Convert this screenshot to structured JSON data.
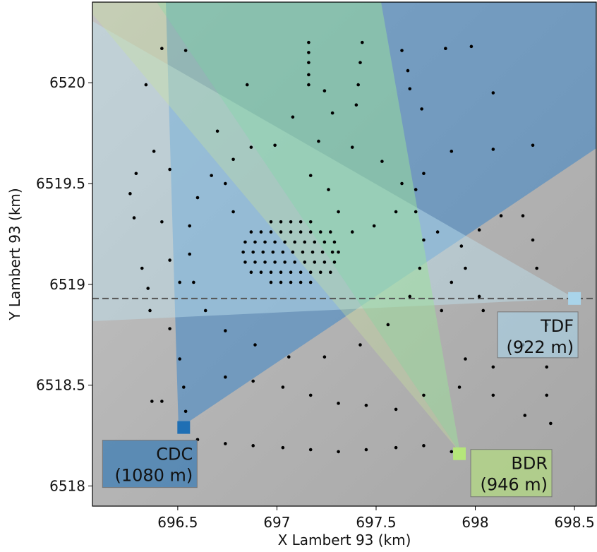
{
  "chart_data": {
    "type": "scatter",
    "xlabel": "X Lambert 93 (km)",
    "ylabel": "Y Lambert 93 (km)",
    "xlim": [
      696.07,
      698.61
    ],
    "ylim": [
      6517.9,
      6520.4
    ],
    "xticks": [
      696.5,
      697,
      697.5,
      698,
      698.5
    ],
    "yticks": [
      6518,
      6518.5,
      6519,
      6519.5,
      6520
    ],
    "color": "#000000",
    "x": [
      696.42,
      696.54,
      696.34,
      697.16,
      697.16,
      697.16,
      697.16,
      697.16,
      697.43,
      697.42,
      697.41,
      697.4,
      697.63,
      697.66,
      697.67,
      697.73,
      697.98,
      697.85,
      698.09,
      698.29,
      698.09,
      697.88,
      697.24,
      697.28,
      697.08,
      696.85,
      696.7,
      696.29,
      696.38,
      696.46,
      696.78,
      696.67,
      696.6,
      696.56,
      696.56,
      696.58,
      696.64,
      696.74,
      696.89,
      697.06,
      697.24,
      697.42,
      697.56,
      697.67,
      697.72,
      697.74,
      697.7,
      697.63,
      697.53,
      697.38,
      697.21,
      696.99,
      696.87,
      696.32,
      696.35,
      696.36,
      696.46,
      696.51,
      696.53,
      696.54,
      696.42,
      696.37,
      696.6,
      696.74,
      696.88,
      697.03,
      697.17,
      697.31,
      697.45,
      697.6,
      697.74,
      697.88,
      697.6,
      697.45,
      697.31,
      697.17,
      697.03,
      696.88,
      696.74,
      697.74,
      697.92,
      698.09,
      698.24,
      698.36,
      698.36,
      698.36,
      698.38,
      698.25,
      698.09,
      697.95,
      697.83,
      697.88,
      698.02,
      698.04,
      697.93,
      697.95,
      697.81,
      698.02,
      698.13,
      698.24,
      698.29,
      698.31,
      697.74,
      697.7,
      697.6,
      697.49,
      697.38,
      697.31,
      697.26,
      697.17,
      696.28,
      696.26,
      696.42,
      696.46,
      696.51,
      696.78,
      696.74,
      696.97,
      697.02,
      697.07,
      697.12,
      697.17,
      696.87,
      696.92,
      696.97,
      697.02,
      697.07,
      697.12,
      697.17,
      697.22,
      697.27,
      696.84,
      696.89,
      696.94,
      696.99,
      697.04,
      697.09,
      697.14,
      697.19,
      697.24,
      697.29,
      696.83,
      696.88,
      696.93,
      696.98,
      697.03,
      697.08,
      697.13,
      697.18,
      697.23,
      697.28,
      697.31,
      696.84,
      696.89,
      696.94,
      696.99,
      697.04,
      697.09,
      697.14,
      697.19,
      697.24,
      697.29,
      696.87,
      696.92,
      696.97,
      697.02,
      697.07,
      697.12,
      697.17,
      697.22,
      697.27,
      696.97,
      697.02,
      697.07,
      697.12,
      697.17
    ],
    "values": [
      6520.17,
      6520.16,
      6519.99,
      6520.2,
      6520.15,
      6520.1,
      6520.04,
      6519.99,
      6520.2,
      6520.1,
      6519.99,
      6519.89,
      6520.16,
      6520.06,
      6519.97,
      6519.87,
      6520.18,
      6520.17,
      6519.95,
      6519.69,
      6519.67,
      6519.66,
      6519.96,
      6519.85,
      6519.83,
      6519.99,
      6519.76,
      6519.55,
      6519.66,
      6519.57,
      6519.62,
      6519.54,
      6519.43,
      6519.29,
      6519.15,
      6519.01,
      6518.87,
      6518.77,
      6518.7,
      6518.64,
      6518.64,
      6518.7,
      6518.8,
      6518.94,
      6519.08,
      6519.22,
      6519.36,
      6519.5,
      6519.61,
      6519.68,
      6519.71,
      6519.69,
      6519.68,
      6519.08,
      6518.98,
      6518.87,
      6518.78,
      6518.63,
      6518.49,
      6518.37,
      6518.42,
      6518.42,
      6518.23,
      6518.21,
      6518.2,
      6518.19,
      6518.18,
      6518.17,
      6518.18,
      6518.19,
      6518.2,
      6518.17,
      6518.38,
      6518.4,
      6518.41,
      6518.45,
      6518.49,
      6518.52,
      6518.54,
      6518.45,
      6518.49,
      6518.59,
      6518.7,
      6518.8,
      6518.59,
      6518.45,
      6518.31,
      6518.35,
      6518.45,
      6518.63,
      6518.87,
      6519.01,
      6518.94,
      6518.87,
      6519.19,
      6519.08,
      6519.26,
      6519.27,
      6519.34,
      6519.34,
      6519.22,
      6519.08,
      6519.55,
      6519.47,
      6519.36,
      6519.29,
      6519.26,
      6519.36,
      6519.47,
      6519.54,
      6519.33,
      6519.45,
      6519.31,
      6519.12,
      6519.01,
      6519.36,
      6519.5,
      6519.31,
      6519.31,
      6519.31,
      6519.31,
      6519.31,
      6519.26,
      6519.26,
      6519.26,
      6519.26,
      6519.26,
      6519.26,
      6519.26,
      6519.26,
      6519.26,
      6519.21,
      6519.21,
      6519.21,
      6519.21,
      6519.21,
      6519.21,
      6519.21,
      6519.21,
      6519.21,
      6519.21,
      6519.16,
      6519.16,
      6519.16,
      6519.16,
      6519.16,
      6519.16,
      6519.16,
      6519.16,
      6519.16,
      6519.16,
      6519.16,
      6519.11,
      6519.11,
      6519.11,
      6519.11,
      6519.11,
      6519.11,
      6519.11,
      6519.11,
      6519.11,
      6519.11,
      6519.06,
      6519.06,
      6519.06,
      6519.06,
      6519.06,
      6519.06,
      6519.06,
      6519.06,
      6519.06,
      6519.01,
      6519.01,
      6519.01,
      6519.01,
      6519.01
    ],
    "hline": 6518.93,
    "stations": [
      {
        "label": "CDC",
        "altitude": "(1080 m)",
        "x": 696.53,
        "y": 6518.29,
        "color": "#1f6fb4"
      },
      {
        "label": "BDR",
        "altitude": "(946 m)",
        "x": 697.92,
        "y": 6518.16,
        "color": "#b5e67a"
      },
      {
        "label": "TDF",
        "altitude": "(922 m)",
        "x": 698.5,
        "y": 6518.93,
        "color": "#a9d4ea"
      }
    ]
  }
}
